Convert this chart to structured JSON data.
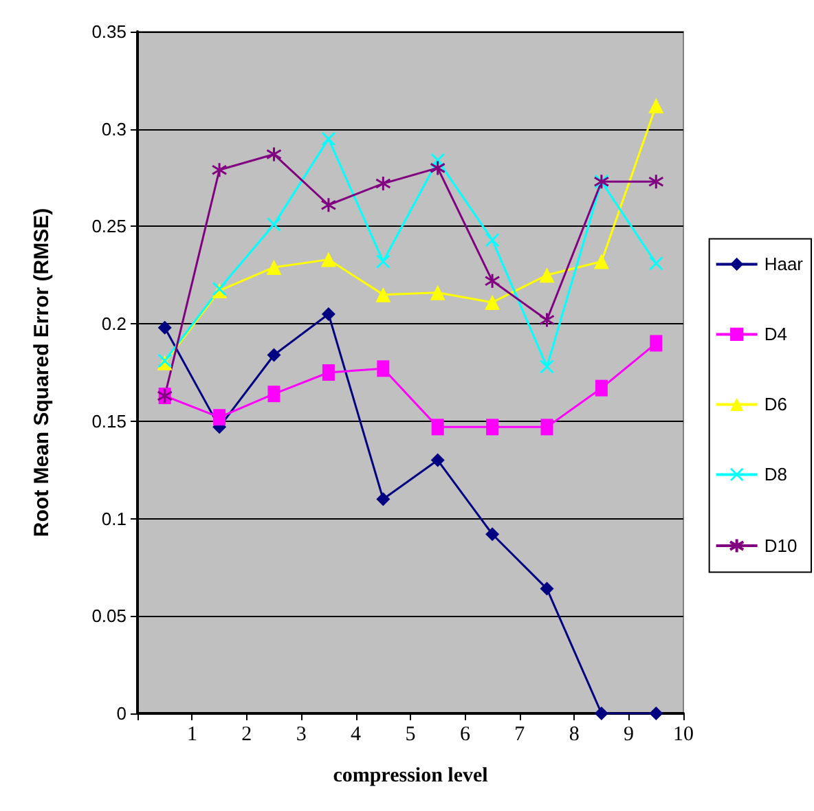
{
  "chart_data": {
    "type": "line",
    "xlabel": "compression level",
    "ylabel": "Root Mean Squared Error (RMSE)",
    "x": [
      0.5,
      1.5,
      2.5,
      3.5,
      4.5,
      5.5,
      6.5,
      7.5,
      8.5,
      9.5
    ],
    "series": [
      {
        "name": "Haar",
        "color": "#000080",
        "marker": "diamond",
        "values": [
          0.198,
          0.147,
          0.184,
          0.205,
          0.11,
          0.13,
          0.092,
          0.064,
          0,
          0
        ]
      },
      {
        "name": "D4",
        "color": "#ff00ff",
        "marker": "square",
        "values": [
          0.163,
          0.152,
          0.164,
          0.175,
          0.177,
          0.147,
          0.147,
          0.147,
          0.167,
          0.19
        ]
      },
      {
        "name": "D6",
        "color": "#ffff00",
        "marker": "triangle",
        "values": [
          0.18,
          0.217,
          0.229,
          0.233,
          0.215,
          0.216,
          0.211,
          0.225,
          0.232,
          0.312
        ]
      },
      {
        "name": "D8",
        "color": "#00ffff",
        "marker": "cross",
        "values": [
          0.181,
          0.218,
          0.251,
          0.295,
          0.232,
          0.284,
          0.243,
          0.178,
          0.273,
          0.231
        ]
      },
      {
        "name": "D10",
        "color": "#800080",
        "marker": "star",
        "values": [
          0.163,
          0.279,
          0.287,
          0.261,
          0.272,
          0.28,
          0.222,
          0.202,
          0.273,
          0.273
        ]
      }
    ],
    "xlim": [
      0,
      10
    ],
    "xticks": [
      {
        "value": 0,
        "label": null
      },
      1,
      2,
      3,
      4,
      5,
      6,
      7,
      8,
      9,
      10
    ],
    "ylim": [
      0,
      0.35
    ],
    "yticks": [
      0,
      0.05,
      0.1,
      0.15,
      0.2,
      0.25,
      0.3,
      0.35
    ],
    "grid": "y",
    "legend": "right"
  }
}
